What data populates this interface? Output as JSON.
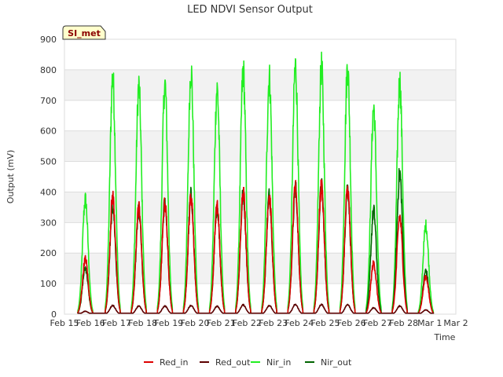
{
  "chart_data": {
    "type": "line",
    "title": "LED NDVI Sensor Output",
    "xlabel": "Time",
    "ylabel": "Output (mV)",
    "site_tag": "SI_met",
    "ylim": [
      0,
      900
    ],
    "xlim": [
      15,
      30
    ],
    "yticks": [
      0,
      100,
      200,
      300,
      400,
      500,
      600,
      700,
      800,
      900
    ],
    "xticks": [
      {
        "value": 15,
        "label": "Feb 15"
      },
      {
        "value": 16,
        "label": "Feb 16"
      },
      {
        "value": 17,
        "label": "Feb 17"
      },
      {
        "value": 18,
        "label": "Feb 18"
      },
      {
        "value": 19,
        "label": "Feb 19"
      },
      {
        "value": 20,
        "label": "Feb 20"
      },
      {
        "value": 21,
        "label": "Feb 21"
      },
      {
        "value": 22,
        "label": "Feb 22"
      },
      {
        "value": 23,
        "label": "Feb 23"
      },
      {
        "value": 24,
        "label": "Feb 24"
      },
      {
        "value": 25,
        "label": "Feb 25"
      },
      {
        "value": 26,
        "label": "Feb 26"
      },
      {
        "value": 27,
        "label": "Feb 27"
      },
      {
        "value": 28,
        "label": "Feb 28"
      },
      {
        "value": 29,
        "label": "Mar 1"
      },
      {
        "value": 30,
        "label": "Mar 2"
      }
    ],
    "day_centers": [
      15.8,
      16.85,
      17.85,
      18.85,
      19.85,
      20.85,
      21.85,
      22.85,
      23.85,
      24.85,
      25.85,
      26.85,
      27.85,
      28.85
    ],
    "day_width": 0.18,
    "series": [
      {
        "name": "Red_in",
        "color": "#dd0000",
        "daily_peaks": [
          190,
          405,
          370,
          380,
          405,
          370,
          425,
          410,
          435,
          440,
          430,
          175,
          335,
          130
        ]
      },
      {
        "name": "Red_out",
        "color": "#5c0000",
        "daily_peaks": [
          10,
          30,
          28,
          28,
          30,
          27,
          32,
          30,
          33,
          33,
          33,
          22,
          28,
          15
        ]
      },
      {
        "name": "Nir_in",
        "color": "#22ee22",
        "daily_peaks": [
          395,
          815,
          785,
          790,
          840,
          775,
          840,
          815,
          855,
          850,
          850,
          710,
          800,
          305
        ]
      },
      {
        "name": "Nir_out",
        "color": "#006400",
        "daily_peaks": [
          160,
          370,
          355,
          385,
          410,
          370,
          415,
          410,
          435,
          440,
          435,
          355,
          485,
          150
        ]
      }
    ]
  }
}
